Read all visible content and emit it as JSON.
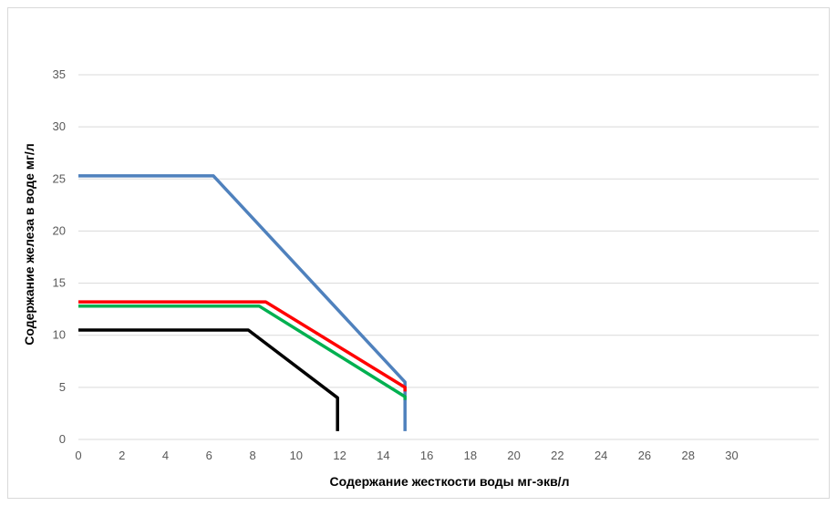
{
  "chart_data": {
    "type": "line",
    "title": "",
    "xlabel": "Содержание жесткости воды мг-экв/л",
    "ylabel": "Содержание железа в воде мг/л",
    "xlim": [
      0,
      34
    ],
    "ylim": [
      0,
      35
    ],
    "x_ticks": [
      0,
      2,
      4,
      6,
      8,
      10,
      12,
      14,
      16,
      18,
      20,
      22,
      24,
      26,
      28,
      30
    ],
    "y_ticks": [
      0,
      5,
      10,
      15,
      20,
      25,
      30,
      35
    ],
    "grid": "horizontal",
    "legend": "none",
    "series": [
      {
        "color": "#4f81bd",
        "points": [
          [
            0,
            25.3
          ],
          [
            6.2,
            25.3
          ],
          [
            15,
            5.5
          ],
          [
            15,
            0.8
          ]
        ]
      },
      {
        "color": "#ff0000",
        "points": [
          [
            0,
            13.2
          ],
          [
            8.6,
            13.2
          ],
          [
            15,
            5.0
          ],
          [
            15,
            4.6
          ]
        ]
      },
      {
        "color": "#00b050",
        "points": [
          [
            0,
            12.8
          ],
          [
            8.3,
            12.8
          ],
          [
            15,
            4.1
          ],
          [
            15,
            3.8
          ]
        ]
      },
      {
        "color": "#000000",
        "points": [
          [
            0,
            10.5
          ],
          [
            7.8,
            10.5
          ],
          [
            11.9,
            4.0
          ],
          [
            11.9,
            0.8
          ]
        ]
      }
    ]
  }
}
